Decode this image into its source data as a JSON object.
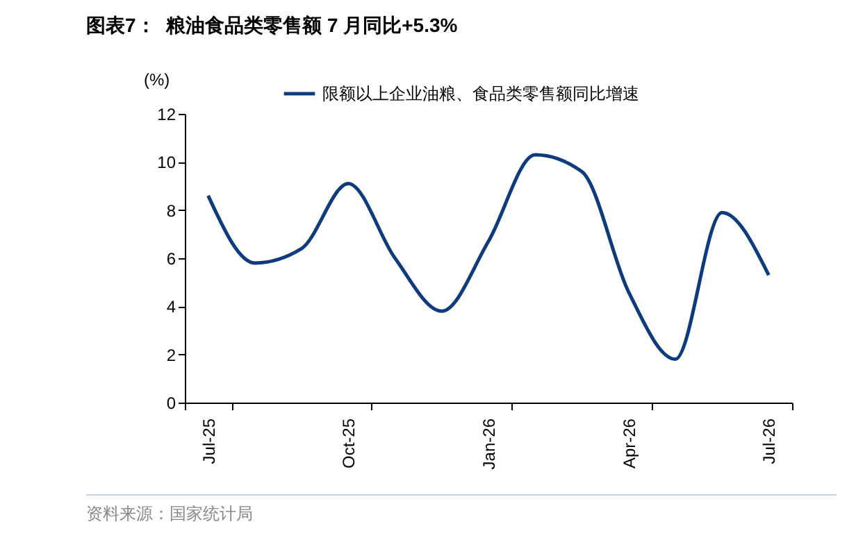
{
  "chart_data": {
    "type": "line",
    "title": "图表7：  粮油食品类零售额 7 月同比+5.3%",
    "ylabel": "(%)",
    "annotations": [
      "资料来源：国家统计局"
    ],
    "categories": [
      "Jul-25",
      null,
      null,
      "Oct-25",
      null,
      null,
      "Jan-26",
      null,
      null,
      "Apr-26",
      null,
      null,
      "Jul-26"
    ],
    "series": [
      {
        "name": "限额以上企业油粮、食品类零售额同比增速",
        "color": "#0d3b7e",
        "values": [
          8.6,
          5.8,
          6.4,
          9.1,
          6.0,
          3.8,
          6.7,
          10.3,
          9.6,
          4.6,
          1.8,
          7.9,
          5.3
        ]
      }
    ],
    "ylim": [
      0,
      12
    ],
    "yticks": [
      0,
      2,
      4,
      6,
      8,
      10,
      12
    ],
    "legend": "top",
    "marker": "none",
    "line_style": "solid"
  }
}
